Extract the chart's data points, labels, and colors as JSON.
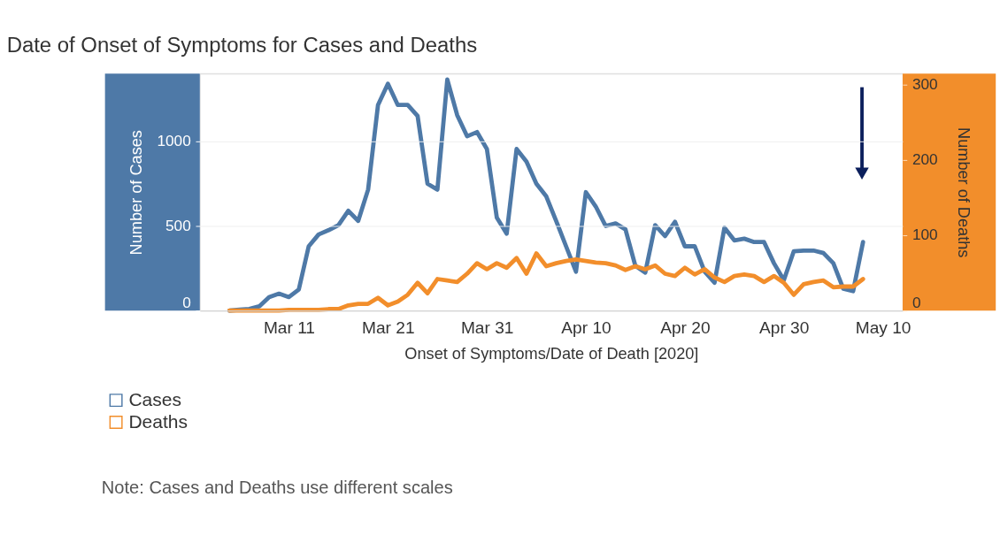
{
  "chart_data": {
    "type": "line",
    "title": "Date of Onset of Symptoms for Cases and Deaths",
    "xlabel": "Onset of Symptoms/Date of Death [2020]",
    "ylabel": "Number of Cases",
    "y2label": "Number of Deaths",
    "x": [
      "2020-03-05",
      "2020-03-06",
      "2020-03-07",
      "2020-03-08",
      "2020-03-09",
      "2020-03-10",
      "2020-03-11",
      "2020-03-12",
      "2020-03-13",
      "2020-03-14",
      "2020-03-15",
      "2020-03-16",
      "2020-03-17",
      "2020-03-18",
      "2020-03-19",
      "2020-03-20",
      "2020-03-21",
      "2020-03-22",
      "2020-03-23",
      "2020-03-24",
      "2020-03-25",
      "2020-03-26",
      "2020-03-27",
      "2020-03-28",
      "2020-03-29",
      "2020-03-30",
      "2020-03-31",
      "2020-04-01",
      "2020-04-02",
      "2020-04-03",
      "2020-04-04",
      "2020-04-05",
      "2020-04-06",
      "2020-04-07",
      "2020-04-08",
      "2020-04-09",
      "2020-04-10",
      "2020-04-11",
      "2020-04-12",
      "2020-04-13",
      "2020-04-14",
      "2020-04-15",
      "2020-04-16",
      "2020-04-17",
      "2020-04-18",
      "2020-04-19",
      "2020-04-20",
      "2020-04-21",
      "2020-04-22",
      "2020-04-23",
      "2020-04-24",
      "2020-04-25",
      "2020-04-26",
      "2020-04-27",
      "2020-04-28",
      "2020-04-29",
      "2020-04-30",
      "2020-05-01",
      "2020-05-02",
      "2020-05-03",
      "2020-05-04",
      "2020-05-05",
      "2020-05-06",
      "2020-05-07",
      "2020-05-08"
    ],
    "series": [
      {
        "name": "Cases",
        "color": "#4e79a7",
        "values": [
          0,
          5,
          10,
          25,
          80,
          100,
          80,
          125,
          380,
          450,
          475,
          505,
          590,
          530,
          715,
          1215,
          1340,
          1215,
          1215,
          1150,
          750,
          715,
          1365,
          1155,
          1030,
          1055,
          955,
          550,
          455,
          955,
          880,
          750,
          675,
          530,
          380,
          230,
          700,
          615,
          500,
          515,
          480,
          265,
          225,
          505,
          440,
          525,
          380,
          380,
          230,
          165,
          490,
          415,
          425,
          405,
          405,
          280,
          180,
          350,
          355,
          355,
          340,
          280,
          130,
          115,
          405
        ]
      },
      {
        "name": "Deaths",
        "color": "#f28e2b",
        "axis": "y2",
        "values": [
          0,
          0,
          0,
          0,
          0,
          0,
          1,
          1,
          1,
          1,
          2,
          2,
          7,
          9,
          9,
          17,
          7,
          12,
          21,
          37,
          23,
          42,
          40,
          38,
          49,
          63,
          55,
          63,
          57,
          70,
          49,
          76,
          59,
          63,
          66,
          68,
          66,
          64,
          63,
          60,
          54,
          59,
          55,
          60,
          49,
          46,
          57,
          48,
          55,
          44,
          38,
          46,
          48,
          46,
          38,
          46,
          37,
          21,
          35,
          38,
          40,
          31,
          32,
          32,
          42
        ]
      }
    ],
    "xlim": [
      "2020-03-02",
      "2020-05-12"
    ],
    "xticks": [
      {
        "value": "2020-03-11",
        "label": "Mar 11"
      },
      {
        "value": "2020-03-21",
        "label": "Mar 21"
      },
      {
        "value": "2020-03-31",
        "label": "Mar 31"
      },
      {
        "value": "2020-04-10",
        "label": "Apr 10"
      },
      {
        "value": "2020-04-20",
        "label": "Apr 20"
      },
      {
        "value": "2020-04-30",
        "label": "Apr 30"
      },
      {
        "value": "2020-05-10",
        "label": "May 10"
      }
    ],
    "ylim": [
      0,
      1400
    ],
    "yticks": [
      0,
      500,
      1000
    ],
    "y2lim": [
      0,
      315
    ],
    "y2ticks": [
      0,
      100,
      200,
      300
    ],
    "grid": "y",
    "legend": "bottom left",
    "line_style": "solid",
    "marker": "none",
    "annotations": [
      "Note: Cases and Deaths use different scales"
    ]
  }
}
